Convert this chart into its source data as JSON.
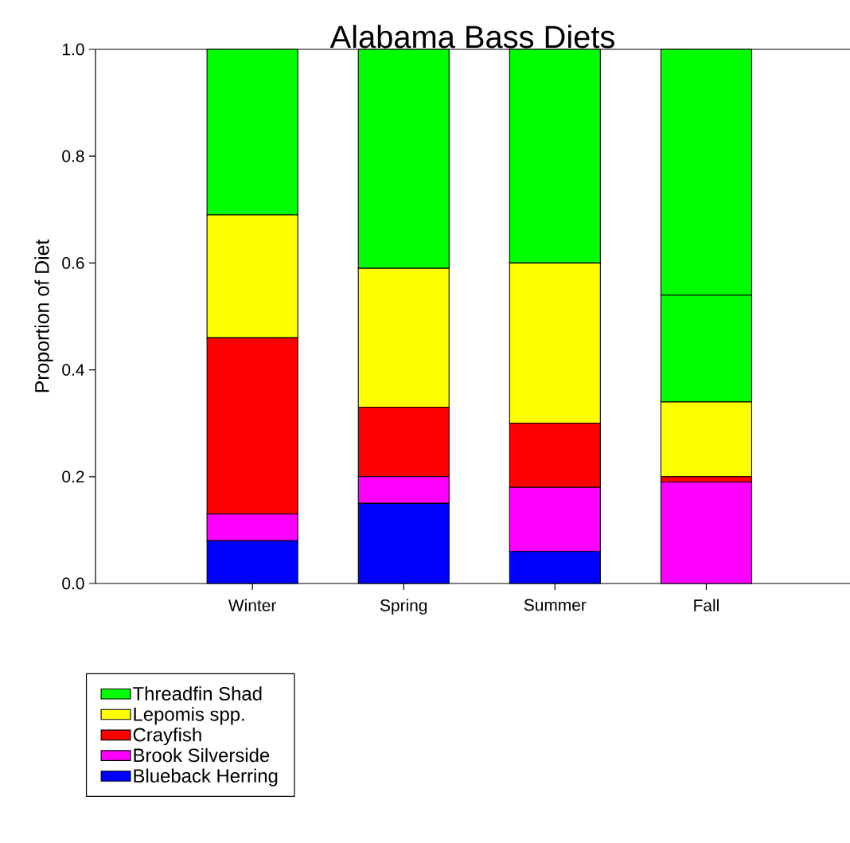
{
  "chart_data": {
    "type": "bar",
    "title": "Alabama Bass Diets",
    "ylabel": "Proportion of Diet",
    "categories": [
      "Winter",
      "Spring",
      "Summer",
      "Fall"
    ],
    "stacked": true,
    "series": [
      {
        "name": "Blueback Herring",
        "color": "#0000ff",
        "values": [
          0.08,
          0.15,
          0.06,
          0
        ]
      },
      {
        "name": "Brook Silverside",
        "color": "#ff00ff",
        "values": [
          0.05,
          0.05,
          0.12,
          0.19
        ]
      },
      {
        "name": "Crayfish",
        "color": "#ff0000",
        "values": [
          0.33,
          0.13,
          0.12,
          0.01
        ]
      },
      {
        "name": "Lepomis spp.",
        "color": "#ffff00",
        "values": [
          0.23,
          0.26,
          0.3,
          0.14
        ]
      },
      {
        "name": "Threadfin Shad",
        "color": "#00ff00",
        "values": [
          0.31,
          0.41,
          0.4,
          0.2
        ]
      },
      {
        "color": "#00ff00",
        "values": [
          0,
          0,
          0,
          0.46
        ]
      }
    ],
    "ylim": [
      0,
      1
    ],
    "yticks": [
      {
        "value": 0,
        "label": "0.0"
      },
      0.2,
      0.4,
      0.6,
      0.8,
      {
        "value": 1,
        "label": "1.0"
      }
    ],
    "legend": "bottom"
  }
}
